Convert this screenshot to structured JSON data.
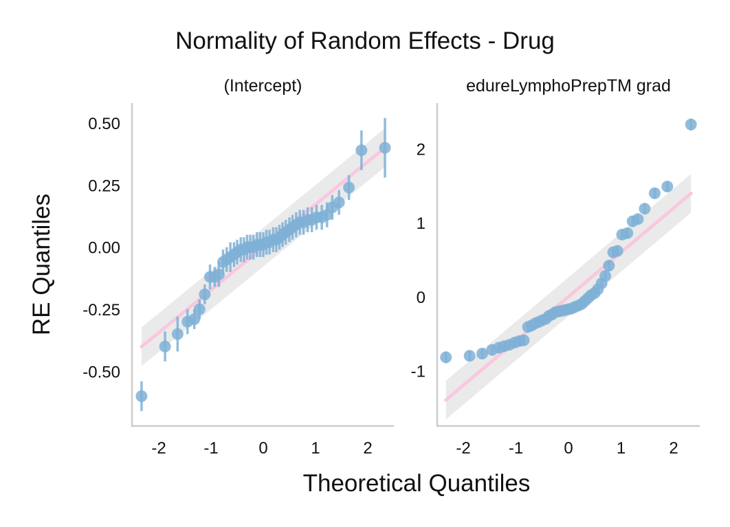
{
  "figure": {
    "title": "Normality of Random Effects - Drug",
    "xlabel": "Theoretical Quantiles",
    "ylabel": "RE Quantiles"
  },
  "colors": {
    "points": "#7fb0d6",
    "reference_line": "#f9c8df",
    "confidence_band": "#d9d9d9",
    "axis": "#cccccc"
  },
  "chart_data": [
    {
      "type": "scatter",
      "panel_label": "(Intercept)",
      "xlim": [
        -2.4,
        2.4
      ],
      "ylim": [
        -0.72,
        0.58
      ],
      "xticks": [
        -2,
        -1,
        0,
        1,
        2
      ],
      "yticks": [
        0.5,
        0.25,
        0.0,
        -0.25,
        -0.5
      ],
      "ytick_labels": [
        "0.50",
        "0.25",
        "0.00",
        "-0.25",
        "-0.50"
      ],
      "reference_line": {
        "intercept": 0.0,
        "slope": 0.172
      },
      "points": [
        {
          "x": -2.33,
          "y": -0.6,
          "e": 0.06
        },
        {
          "x": -1.88,
          "y": -0.4,
          "e": 0.06
        },
        {
          "x": -1.64,
          "y": -0.35,
          "e": 0.07
        },
        {
          "x": -1.45,
          "y": -0.3,
          "e": 0.05
        },
        {
          "x": -1.32,
          "y": -0.29,
          "e": 0.04
        },
        {
          "x": -1.22,
          "y": -0.25,
          "e": 0.04
        },
        {
          "x": -1.12,
          "y": -0.19,
          "e": 0.04
        },
        {
          "x": -1.02,
          "y": -0.12,
          "e": 0.05
        },
        {
          "x": -0.93,
          "y": -0.12,
          "e": 0.04
        },
        {
          "x": -0.85,
          "y": -0.11,
          "e": 0.05
        },
        {
          "x": -0.77,
          "y": -0.06,
          "e": 0.05
        },
        {
          "x": -0.7,
          "y": -0.05,
          "e": 0.05
        },
        {
          "x": -0.63,
          "y": -0.04,
          "e": 0.06
        },
        {
          "x": -0.56,
          "y": -0.03,
          "e": 0.05
        },
        {
          "x": -0.5,
          "y": -0.02,
          "e": 0.05
        },
        {
          "x": -0.43,
          "y": -0.01,
          "e": 0.05
        },
        {
          "x": -0.37,
          "y": -0.01,
          "e": 0.05
        },
        {
          "x": -0.31,
          "y": 0.0,
          "e": 0.05
        },
        {
          "x": -0.25,
          "y": 0.0,
          "e": 0.05
        },
        {
          "x": -0.19,
          "y": 0.0,
          "e": 0.05
        },
        {
          "x": -0.12,
          "y": 0.01,
          "e": 0.05
        },
        {
          "x": -0.06,
          "y": 0.01,
          "e": 0.05
        },
        {
          "x": 0.0,
          "y": 0.01,
          "e": 0.05
        },
        {
          "x": 0.06,
          "y": 0.02,
          "e": 0.05
        },
        {
          "x": 0.12,
          "y": 0.02,
          "e": 0.05
        },
        {
          "x": 0.19,
          "y": 0.03,
          "e": 0.05
        },
        {
          "x": 0.25,
          "y": 0.03,
          "e": 0.05
        },
        {
          "x": 0.31,
          "y": 0.04,
          "e": 0.05
        },
        {
          "x": 0.37,
          "y": 0.05,
          "e": 0.05
        },
        {
          "x": 0.43,
          "y": 0.06,
          "e": 0.05
        },
        {
          "x": 0.5,
          "y": 0.07,
          "e": 0.05
        },
        {
          "x": 0.56,
          "y": 0.08,
          "e": 0.05
        },
        {
          "x": 0.63,
          "y": 0.09,
          "e": 0.05
        },
        {
          "x": 0.7,
          "y": 0.1,
          "e": 0.05
        },
        {
          "x": 0.77,
          "y": 0.1,
          "e": 0.05
        },
        {
          "x": 0.85,
          "y": 0.11,
          "e": 0.05
        },
        {
          "x": 0.93,
          "y": 0.11,
          "e": 0.05
        },
        {
          "x": 1.02,
          "y": 0.12,
          "e": 0.05
        },
        {
          "x": 1.12,
          "y": 0.12,
          "e": 0.05
        },
        {
          "x": 1.22,
          "y": 0.13,
          "e": 0.05
        },
        {
          "x": 1.32,
          "y": 0.16,
          "e": 0.05
        },
        {
          "x": 1.45,
          "y": 0.18,
          "e": 0.05
        },
        {
          "x": 1.64,
          "y": 0.24,
          "e": 0.05
        },
        {
          "x": 1.88,
          "y": 0.39,
          "e": 0.08
        },
        {
          "x": 2.33,
          "y": 0.4,
          "e": 0.12
        }
      ]
    },
    {
      "type": "scatter",
      "panel_label": "edureLymphoPrepTM grad",
      "xlim": [
        -2.4,
        2.4
      ],
      "ylim": [
        -1.75,
        2.62
      ],
      "xticks": [
        -2,
        -1,
        0,
        1,
        2
      ],
      "yticks": [
        2,
        1,
        0,
        -1
      ],
      "ytick_labels": [
        "2",
        "1",
        "0",
        "-1"
      ],
      "reference_line": {
        "intercept": 0.0,
        "slope": 0.6
      },
      "points": [
        {
          "x": -2.33,
          "y": -0.82,
          "e": 0.08
        },
        {
          "x": -1.88,
          "y": -0.8,
          "e": 0.07
        },
        {
          "x": -1.64,
          "y": -0.77,
          "e": 0.07
        },
        {
          "x": -1.45,
          "y": -0.72,
          "e": 0.07
        },
        {
          "x": -1.32,
          "y": -0.69,
          "e": 0.07
        },
        {
          "x": -1.22,
          "y": -0.67,
          "e": 0.07
        },
        {
          "x": -1.12,
          "y": -0.65,
          "e": 0.07
        },
        {
          "x": -1.02,
          "y": -0.62,
          "e": 0.07
        },
        {
          "x": -0.93,
          "y": -0.6,
          "e": 0.07
        },
        {
          "x": -0.85,
          "y": -0.59,
          "e": 0.07
        },
        {
          "x": -0.77,
          "y": -0.41,
          "e": 0.07
        },
        {
          "x": -0.7,
          "y": -0.39,
          "e": 0.07
        },
        {
          "x": -0.63,
          "y": -0.36,
          "e": 0.07
        },
        {
          "x": -0.56,
          "y": -0.34,
          "e": 0.07
        },
        {
          "x": -0.5,
          "y": -0.32,
          "e": 0.07
        },
        {
          "x": -0.43,
          "y": -0.3,
          "e": 0.07
        },
        {
          "x": -0.37,
          "y": -0.26,
          "e": 0.07
        },
        {
          "x": -0.31,
          "y": -0.24,
          "e": 0.07
        },
        {
          "x": -0.25,
          "y": -0.21,
          "e": 0.07
        },
        {
          "x": -0.19,
          "y": -0.2,
          "e": 0.07
        },
        {
          "x": -0.12,
          "y": -0.19,
          "e": 0.07
        },
        {
          "x": -0.06,
          "y": -0.18,
          "e": 0.07
        },
        {
          "x": 0.0,
          "y": -0.17,
          "e": 0.07
        },
        {
          "x": 0.06,
          "y": -0.16,
          "e": 0.07
        },
        {
          "x": 0.12,
          "y": -0.14,
          "e": 0.07
        },
        {
          "x": 0.19,
          "y": -0.12,
          "e": 0.07
        },
        {
          "x": 0.25,
          "y": -0.1,
          "e": 0.07
        },
        {
          "x": 0.31,
          "y": -0.06,
          "e": 0.07
        },
        {
          "x": 0.37,
          "y": -0.02,
          "e": 0.07
        },
        {
          "x": 0.43,
          "y": 0.02,
          "e": 0.07
        },
        {
          "x": 0.5,
          "y": 0.05,
          "e": 0.07
        },
        {
          "x": 0.56,
          "y": 0.1,
          "e": 0.07
        },
        {
          "x": 0.63,
          "y": 0.18,
          "e": 0.07
        },
        {
          "x": 0.7,
          "y": 0.28,
          "e": 0.07
        },
        {
          "x": 0.77,
          "y": 0.42,
          "e": 0.07
        },
        {
          "x": 0.85,
          "y": 0.6,
          "e": 0.07
        },
        {
          "x": 0.93,
          "y": 0.62,
          "e": 0.07
        },
        {
          "x": 1.02,
          "y": 0.84,
          "e": 0.07
        },
        {
          "x": 1.12,
          "y": 0.86,
          "e": 0.07
        },
        {
          "x": 1.22,
          "y": 1.02,
          "e": 0.07
        },
        {
          "x": 1.32,
          "y": 1.05,
          "e": 0.07
        },
        {
          "x": 1.45,
          "y": 1.19,
          "e": 0.07
        },
        {
          "x": 1.64,
          "y": 1.4,
          "e": 0.07
        },
        {
          "x": 1.88,
          "y": 1.49,
          "e": 0.07
        },
        {
          "x": 2.33,
          "y": 2.33,
          "e": 0.08
        }
      ]
    }
  ]
}
